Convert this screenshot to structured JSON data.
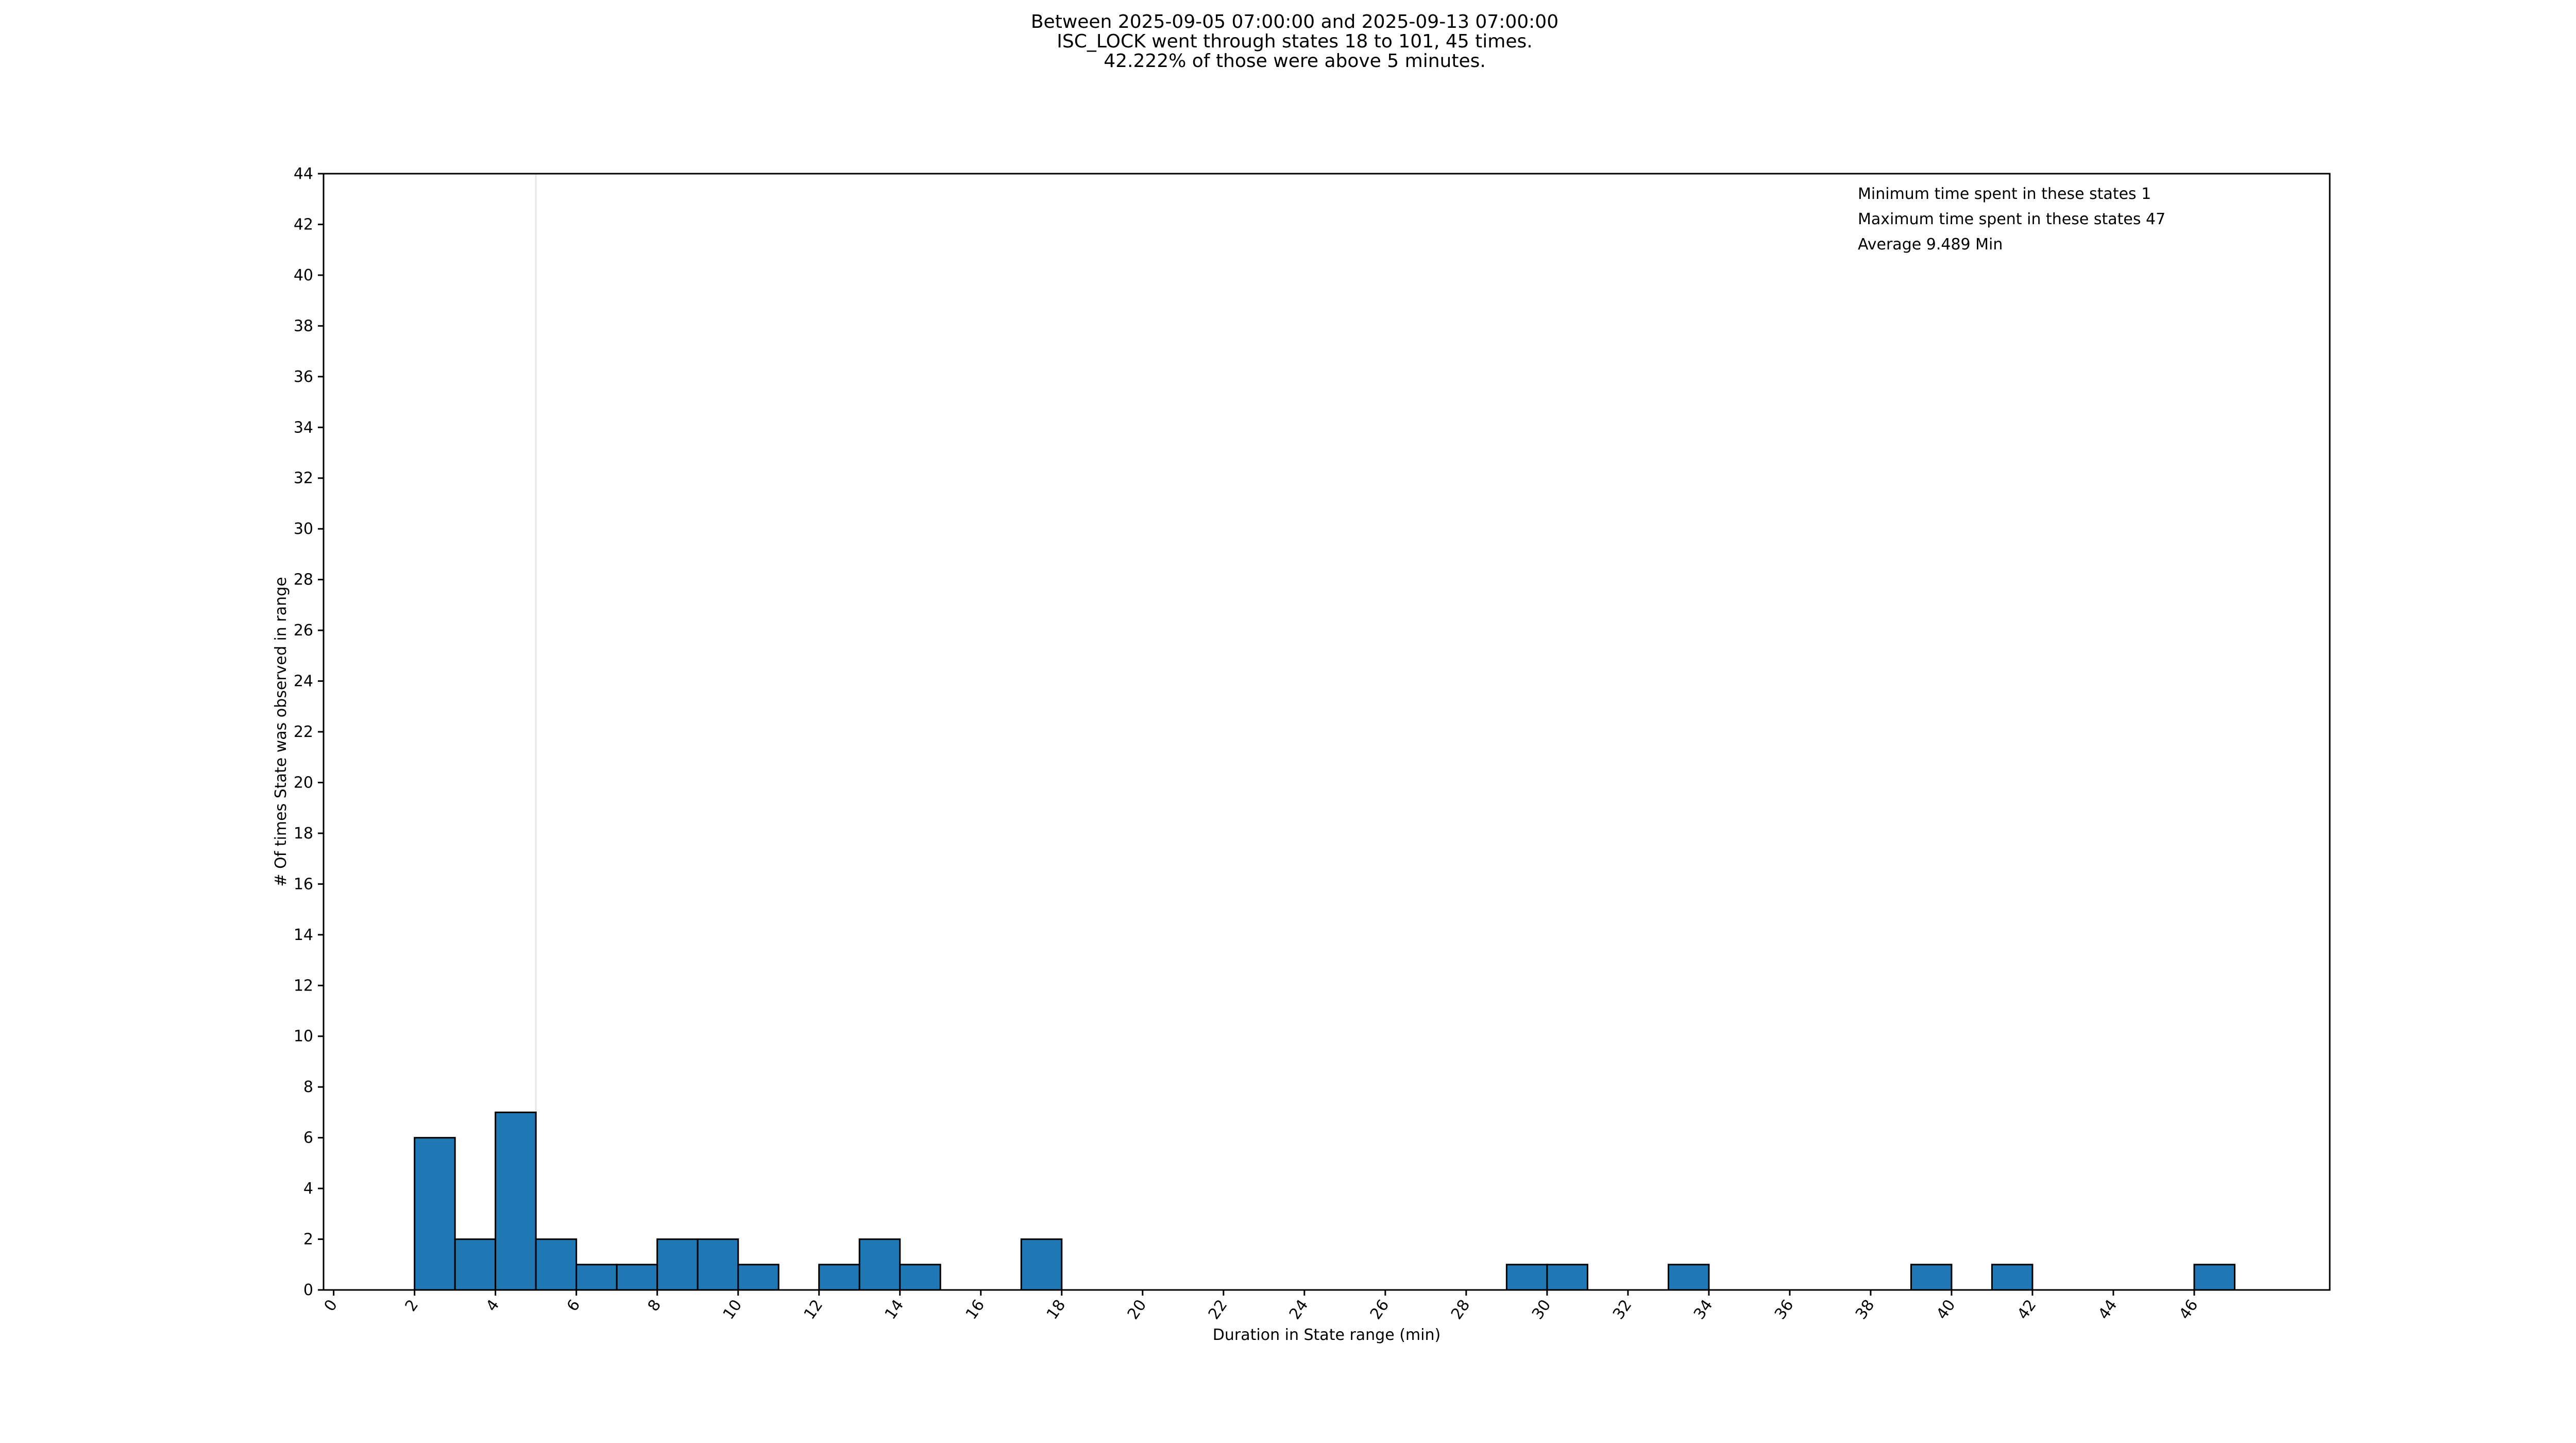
{
  "chart_data": {
    "type": "histogram",
    "title": [
      "Between 2025-09-05 07:00:00 and 2025-09-13 07:00:00",
      "ISC_LOCK went through states 18 to 101, 45 times.",
      "42.222% of those were above 5 minutes."
    ],
    "annotations": [
      "Minimum time spent in these states 1",
      "Maximum time spent in these states 47",
      "Average 9.489 Min"
    ],
    "x_label": "Duration in State range (min)",
    "y_label": "# Of times State was observed in range",
    "bins": [
      2,
      3,
      4,
      5,
      6,
      7,
      8,
      9,
      10,
      11,
      12,
      13,
      14,
      15,
      16,
      17,
      18,
      19,
      20,
      21,
      22,
      23,
      24,
      25,
      26,
      27,
      28,
      29,
      30,
      31,
      32,
      33,
      34,
      35,
      36,
      37,
      38,
      39,
      40,
      41,
      42,
      43,
      44,
      45,
      46,
      47
    ],
    "values": [
      6,
      2,
      7,
      2,
      1,
      1,
      2,
      2,
      1,
      0,
      1,
      2,
      1,
      0,
      0,
      2,
      0,
      0,
      0,
      0,
      0,
      0,
      0,
      0,
      0,
      0,
      0,
      1,
      1,
      0,
      0,
      1,
      0,
      0,
      0,
      0,
      0,
      1,
      0,
      1,
      0,
      0,
      0,
      0,
      1
    ],
    "color": "#1f77b4",
    "threshold": 5,
    "xlim": [
      -0.25,
      49.35
    ],
    "xticks": [
      0,
      2,
      4,
      6,
      8,
      10,
      12,
      14,
      16,
      18,
      20,
      22,
      24,
      26,
      28,
      30,
      32,
      34,
      36,
      38,
      40,
      42,
      44,
      46
    ],
    "ylim": [
      0,
      44
    ],
    "yticks": [
      0,
      2,
      4,
      6,
      8,
      10,
      12,
      14,
      16,
      18,
      20,
      22,
      24,
      26,
      28,
      30,
      32,
      34,
      36,
      38,
      40,
      42,
      44
    ]
  }
}
